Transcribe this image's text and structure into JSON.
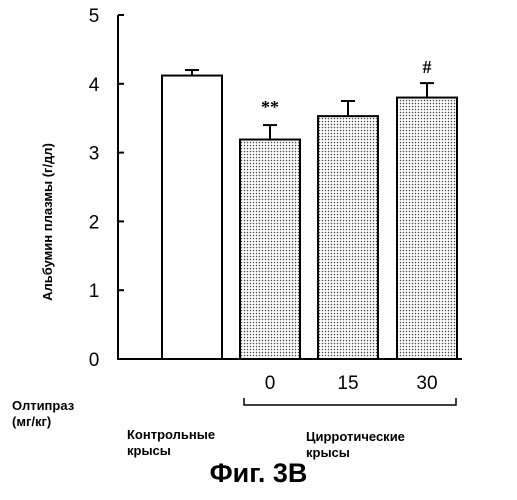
{
  "chart_data": {
    "type": "bar",
    "ylabel": "Альбумин плазмы (г/дл)",
    "ylim": [
      0,
      5
    ],
    "yticks": [
      "0",
      "1",
      "2",
      "3",
      "4",
      "5"
    ],
    "categories": [
      "",
      "0",
      "15",
      "30"
    ],
    "values": [
      4.12,
      3.19,
      3.53,
      3.8
    ],
    "errors": [
      0.08,
      0.21,
      0.22,
      0.21
    ],
    "bar_styles": [
      "open",
      "dotted",
      "dotted",
      "dotted"
    ],
    "annotations": [
      "",
      "**",
      "",
      "#"
    ],
    "group_labels": {
      "control": "Контрольные крысы",
      "cirrhotic": "Цирротические крысы"
    }
  },
  "x_axis_title": {
    "line1": "Олтипраз",
    "line2": "(мг/кг)"
  },
  "groups": {
    "control_line1": "Контрольные",
    "control_line2": "крысы",
    "cirrhotic_line1": "Цирротические",
    "cirrhotic_line2": "крысы"
  },
  "caption": "Фиг. 3В"
}
